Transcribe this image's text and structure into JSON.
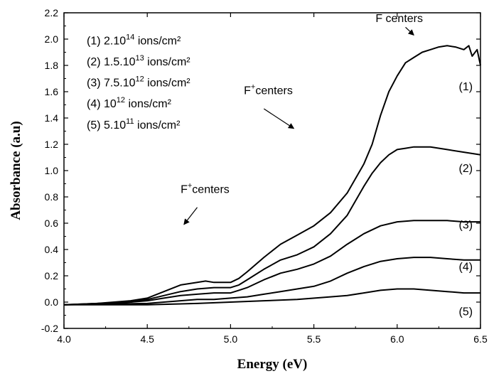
{
  "chart_data": {
    "type": "line",
    "xlabel": "Energy (eV)",
    "ylabel": "Absorbance (a.u)",
    "xlim": [
      4.0,
      6.5
    ],
    "ylim": [
      -0.2,
      2.2
    ],
    "xticks": [
      "4.0",
      "4.5",
      "5.0",
      "5.5",
      "6.0",
      "6.5"
    ],
    "yticks": [
      "-0.2",
      "0.0",
      "0.2",
      "0.4",
      "0.6",
      "0.8",
      "1.0",
      "1.2",
      "1.4",
      "1.6",
      "1.8",
      "2.0",
      "2.2"
    ],
    "grid": false,
    "legend_position": "top-left",
    "legend": [
      {
        "prefix": "(1) 2.10",
        "sup": "14",
        "suffix": " ions/cm²"
      },
      {
        "prefix": "(2) 1.5.10",
        "sup": "13",
        "suffix": " ions/cm²"
      },
      {
        "prefix": "(3) 7.5.10",
        "sup": "12",
        "suffix": " ions/cm²"
      },
      {
        "prefix": "(4) 10",
        "sup": "12",
        "suffix": " ions/cm²"
      },
      {
        "prefix": "(5) 5.10",
        "sup": "11",
        "suffix": " ions/cm²"
      }
    ],
    "series": [
      {
        "label": "(1)",
        "label_at": [
          6.37,
          1.61
        ],
        "x": [
          4.0,
          4.2,
          4.4,
          4.5,
          4.6,
          4.7,
          4.8,
          4.85,
          4.9,
          4.95,
          5.0,
          5.05,
          5.1,
          5.2,
          5.3,
          5.4,
          5.5,
          5.6,
          5.7,
          5.8,
          5.85,
          5.9,
          5.95,
          6.0,
          6.05,
          6.1,
          6.15,
          6.2,
          6.25,
          6.3,
          6.35,
          6.4,
          6.43,
          6.45,
          6.48,
          6.5
        ],
        "y": [
          -0.02,
          -0.01,
          0.01,
          0.03,
          0.08,
          0.13,
          0.15,
          0.16,
          0.15,
          0.15,
          0.15,
          0.18,
          0.23,
          0.34,
          0.44,
          0.51,
          0.58,
          0.68,
          0.83,
          1.05,
          1.2,
          1.42,
          1.6,
          1.72,
          1.82,
          1.86,
          1.9,
          1.92,
          1.94,
          1.95,
          1.94,
          1.92,
          1.95,
          1.87,
          1.92,
          1.8
        ]
      },
      {
        "label": "(2)",
        "label_at": [
          6.37,
          0.99
        ],
        "x": [
          4.0,
          4.2,
          4.4,
          4.5,
          4.6,
          4.7,
          4.8,
          4.9,
          5.0,
          5.05,
          5.1,
          5.2,
          5.3,
          5.4,
          5.5,
          5.6,
          5.7,
          5.8,
          5.85,
          5.9,
          5.95,
          6.0,
          6.05,
          6.1,
          6.2,
          6.3,
          6.4,
          6.5
        ],
        "y": [
          -0.02,
          -0.01,
          0.0,
          0.02,
          0.05,
          0.08,
          0.1,
          0.11,
          0.11,
          0.13,
          0.17,
          0.25,
          0.32,
          0.36,
          0.42,
          0.52,
          0.66,
          0.88,
          0.98,
          1.06,
          1.12,
          1.16,
          1.17,
          1.18,
          1.18,
          1.16,
          1.14,
          1.12
        ]
      },
      {
        "label": "(3)",
        "label_at": [
          6.37,
          0.56
        ],
        "x": [
          4.0,
          4.3,
          4.5,
          4.6,
          4.7,
          4.8,
          4.9,
          5.0,
          5.05,
          5.1,
          5.2,
          5.3,
          5.4,
          5.5,
          5.6,
          5.7,
          5.8,
          5.9,
          6.0,
          6.1,
          6.2,
          6.3,
          6.4,
          6.5
        ],
        "y": [
          -0.02,
          -0.01,
          0.01,
          0.03,
          0.05,
          0.06,
          0.07,
          0.07,
          0.09,
          0.11,
          0.17,
          0.22,
          0.25,
          0.29,
          0.35,
          0.44,
          0.52,
          0.58,
          0.61,
          0.62,
          0.62,
          0.62,
          0.61,
          0.61
        ]
      },
      {
        "label": "(4)",
        "label_at": [
          6.37,
          0.24
        ],
        "x": [
          4.0,
          4.5,
          4.7,
          4.8,
          4.9,
          5.0,
          5.1,
          5.2,
          5.3,
          5.4,
          5.5,
          5.6,
          5.7,
          5.8,
          5.9,
          6.0,
          6.1,
          6.2,
          6.3,
          6.4,
          6.5
        ],
        "y": [
          -0.02,
          -0.01,
          0.01,
          0.02,
          0.02,
          0.03,
          0.04,
          0.06,
          0.08,
          0.1,
          0.12,
          0.16,
          0.22,
          0.27,
          0.31,
          0.33,
          0.34,
          0.34,
          0.33,
          0.32,
          0.32
        ]
      },
      {
        "label": "(5)",
        "label_at": [
          6.37,
          -0.1
        ],
        "x": [
          4.0,
          4.5,
          4.8,
          5.0,
          5.2,
          5.4,
          5.6,
          5.7,
          5.8,
          5.9,
          6.0,
          6.1,
          6.2,
          6.3,
          6.4,
          6.5
        ],
        "y": [
          -0.02,
          -0.02,
          -0.01,
          0.0,
          0.01,
          0.02,
          0.04,
          0.05,
          0.07,
          0.09,
          0.1,
          0.1,
          0.09,
          0.08,
          0.07,
          0.07
        ]
      }
    ],
    "annotations": [
      {
        "text": "F centers",
        "sup": "",
        "after": "",
        "text_at": [
          5.87,
          2.13
        ],
        "arrow_from": [
          6.05,
          2.09
        ],
        "arrow_to": [
          6.1,
          2.03
        ]
      },
      {
        "text": "F",
        "sup": "+",
        "after": "centers",
        "text_at": [
          5.08,
          1.58
        ],
        "arrow_from": [
          5.2,
          1.47
        ],
        "arrow_to": [
          5.38,
          1.32
        ]
      },
      {
        "text": "F",
        "sup": "+",
        "after": "centers",
        "text_at": [
          4.7,
          0.83
        ],
        "arrow_from": [
          4.8,
          0.72
        ],
        "arrow_to": [
          4.72,
          0.59
        ]
      }
    ]
  }
}
